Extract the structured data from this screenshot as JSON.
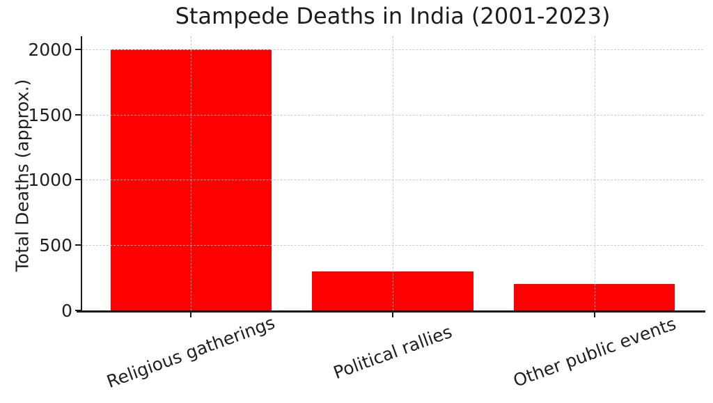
{
  "chart_data": {
    "type": "bar",
    "title": "Stampede Deaths in India (2001-2023)",
    "xlabel": "",
    "ylabel": "Total Deaths (approx.)",
    "categories": [
      "Religious gatherings",
      "Political rallies",
      "Other public events"
    ],
    "values": [
      2000,
      300,
      200
    ],
    "yticks": [
      0,
      500,
      1000,
      1500,
      2000
    ],
    "ylim": [
      0,
      2100
    ],
    "bar_color": "#ff0000",
    "grid": true,
    "grid_linestyle": "dashed",
    "grid_color": "#c3c3c3",
    "spine_color": "#1a1a1a",
    "text_color": "#1f1f1f",
    "background_color": "#ffffff",
    "xtick_label_rotation_deg": 20,
    "legend": "none"
  }
}
